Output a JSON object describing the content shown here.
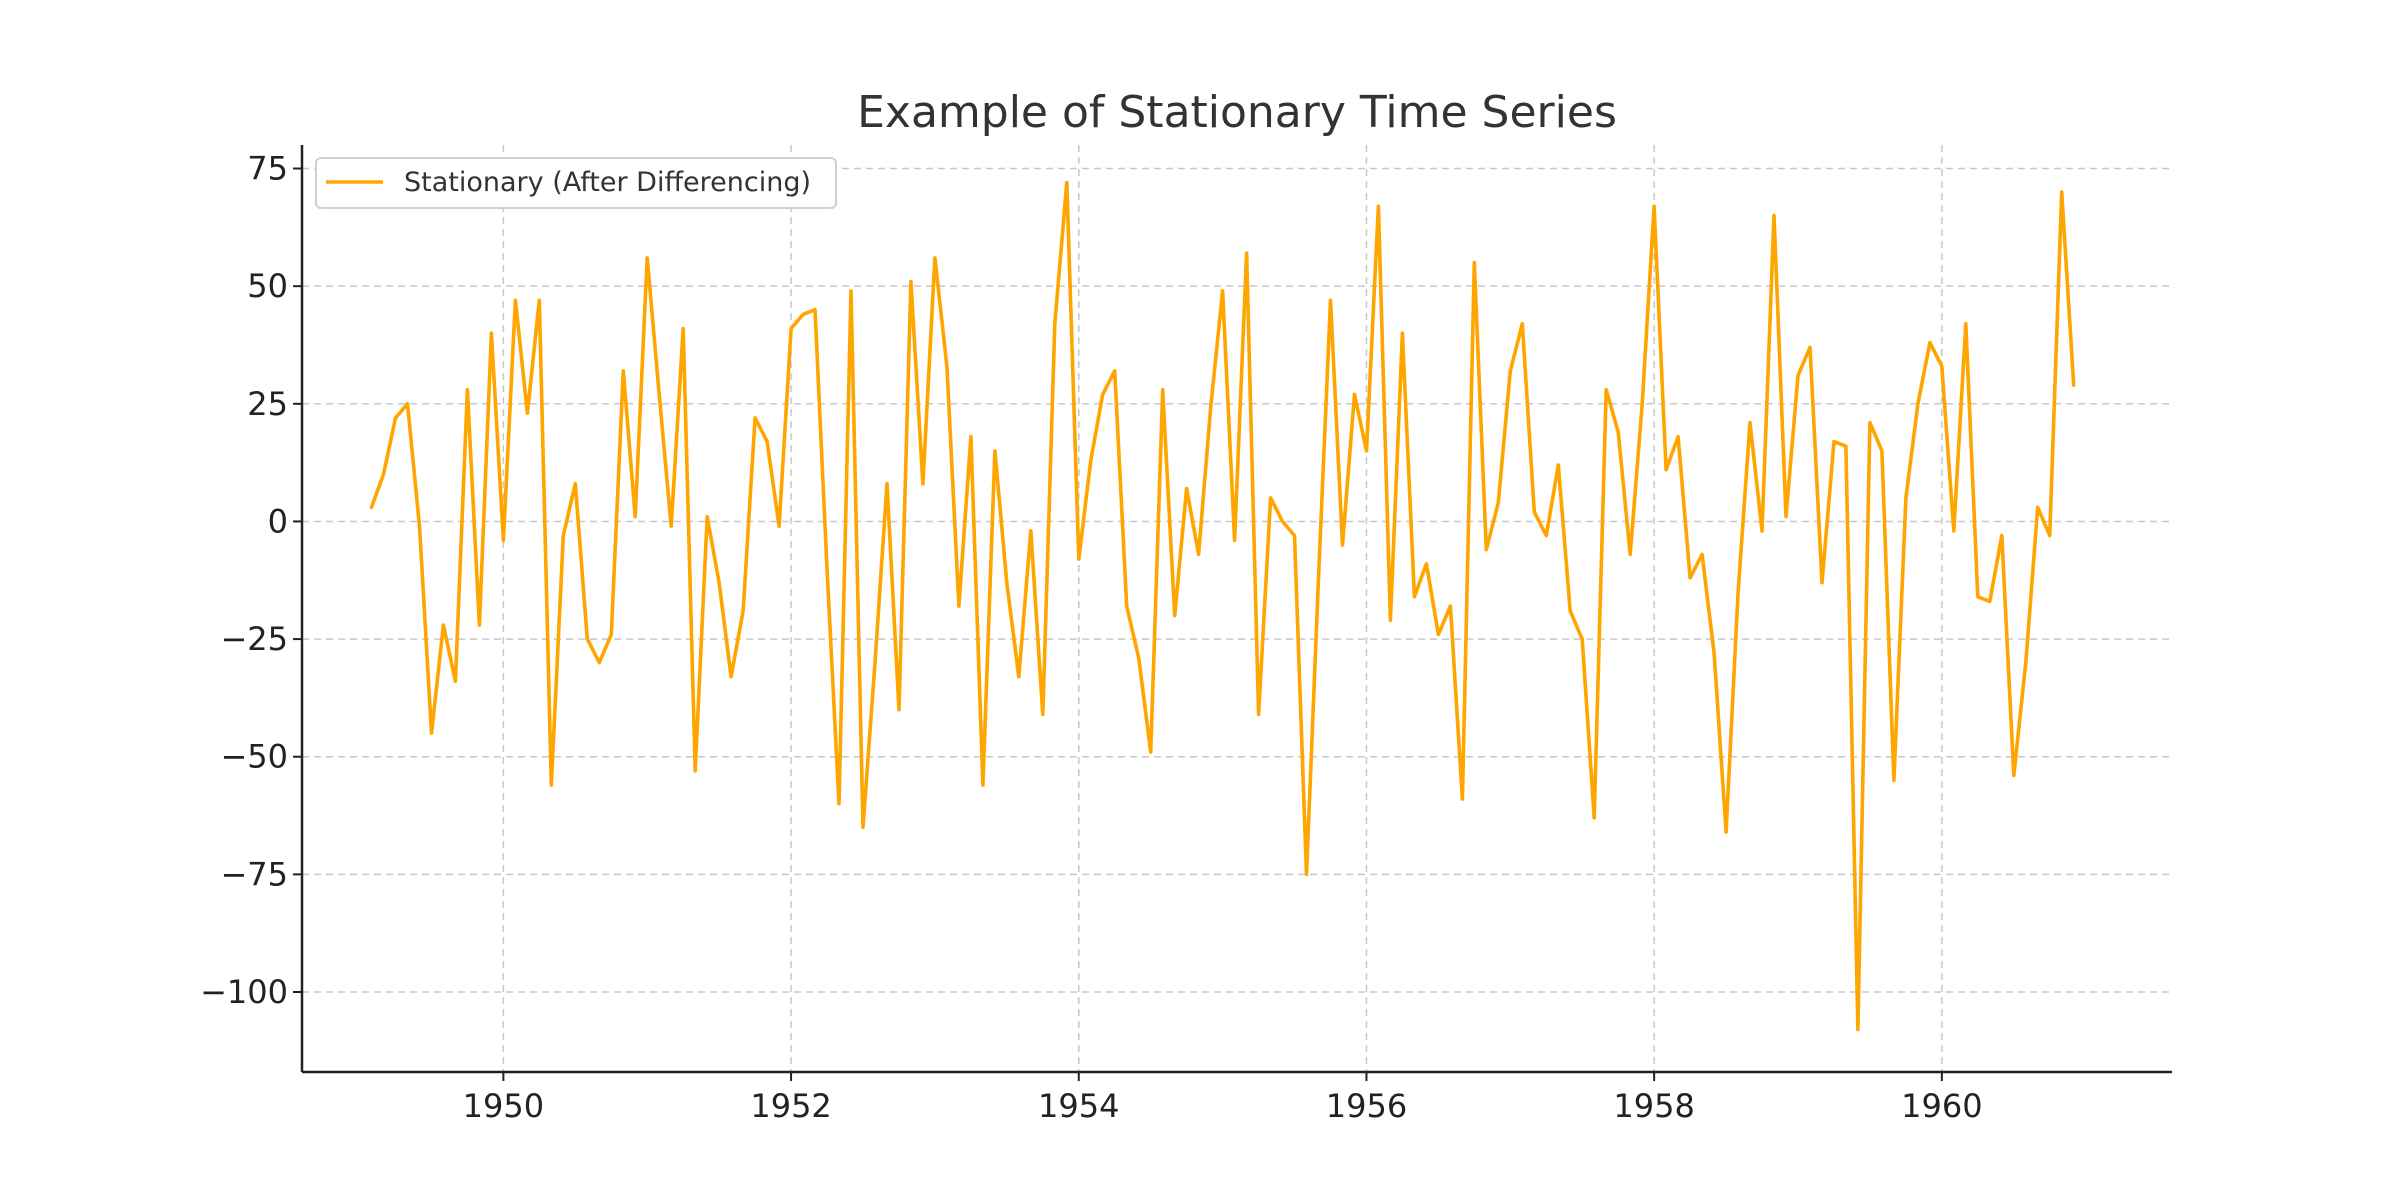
{
  "chart_data": {
    "type": "line",
    "title": "Example of Stationary Time Series",
    "xlabel": "",
    "ylabel": "",
    "xlim": [
      1948.6,
      1961.6
    ],
    "ylim": [
      -117,
      80
    ],
    "x_ticks": [
      1950,
      1952,
      1954,
      1956,
      1958,
      1960
    ],
    "x_tick_labels": [
      "1950",
      "1952",
      "1954",
      "1956",
      "1958",
      "1960"
    ],
    "y_ticks": [
      75,
      50,
      25,
      0,
      -25,
      -50,
      -75,
      -100
    ],
    "y_tick_labels": [
      "75",
      "50",
      "25",
      "0",
      "−25",
      "−50",
      "−75",
      "−100"
    ],
    "grid": true,
    "legend_position": "top-left",
    "x_start": 1949.0833,
    "x_step": 0.0833333,
    "series": [
      {
        "name": "Stationary (After Differencing)",
        "color": "#ffa500",
        "values": [
          3,
          10,
          22,
          25,
          -1,
          -45,
          -22,
          -34,
          28,
          -22,
          40,
          -4,
          47,
          23,
          47,
          -56,
          -3,
          8,
          -25,
          -30,
          -24,
          32,
          1,
          56,
          27,
          -1,
          41,
          -53,
          1,
          -13,
          -33,
          -19,
          22,
          17,
          -1,
          41,
          44,
          45,
          -10,
          -60,
          49,
          -65,
          -30,
          8,
          -40,
          51,
          8,
          56,
          33,
          -18,
          18,
          -56,
          15,
          -13,
          -33,
          -2,
          -41,
          42,
          72,
          -8,
          13,
          27,
          32,
          -18,
          -29,
          -49,
          28,
          -20,
          7,
          -7,
          24,
          49,
          -4,
          57,
          -41,
          5,
          0,
          -3,
          -75,
          -12,
          47,
          -5,
          27,
          15,
          67,
          -21,
          40,
          -16,
          -9,
          -24,
          -18,
          -59,
          55,
          -6,
          4,
          32,
          42,
          2,
          -3,
          12,
          -19,
          -25,
          -63,
          28,
          19,
          -7,
          25,
          67,
          11,
          18,
          -12,
          -7,
          -28,
          -66,
          -15,
          21,
          -2,
          65,
          1,
          31,
          37,
          -13,
          17,
          16,
          -108,
          21,
          15,
          -55,
          5,
          25,
          38,
          33,
          -2,
          42,
          -16,
          -17,
          -3,
          -54,
          -30,
          3,
          -3,
          70,
          29
        ]
      }
    ]
  }
}
